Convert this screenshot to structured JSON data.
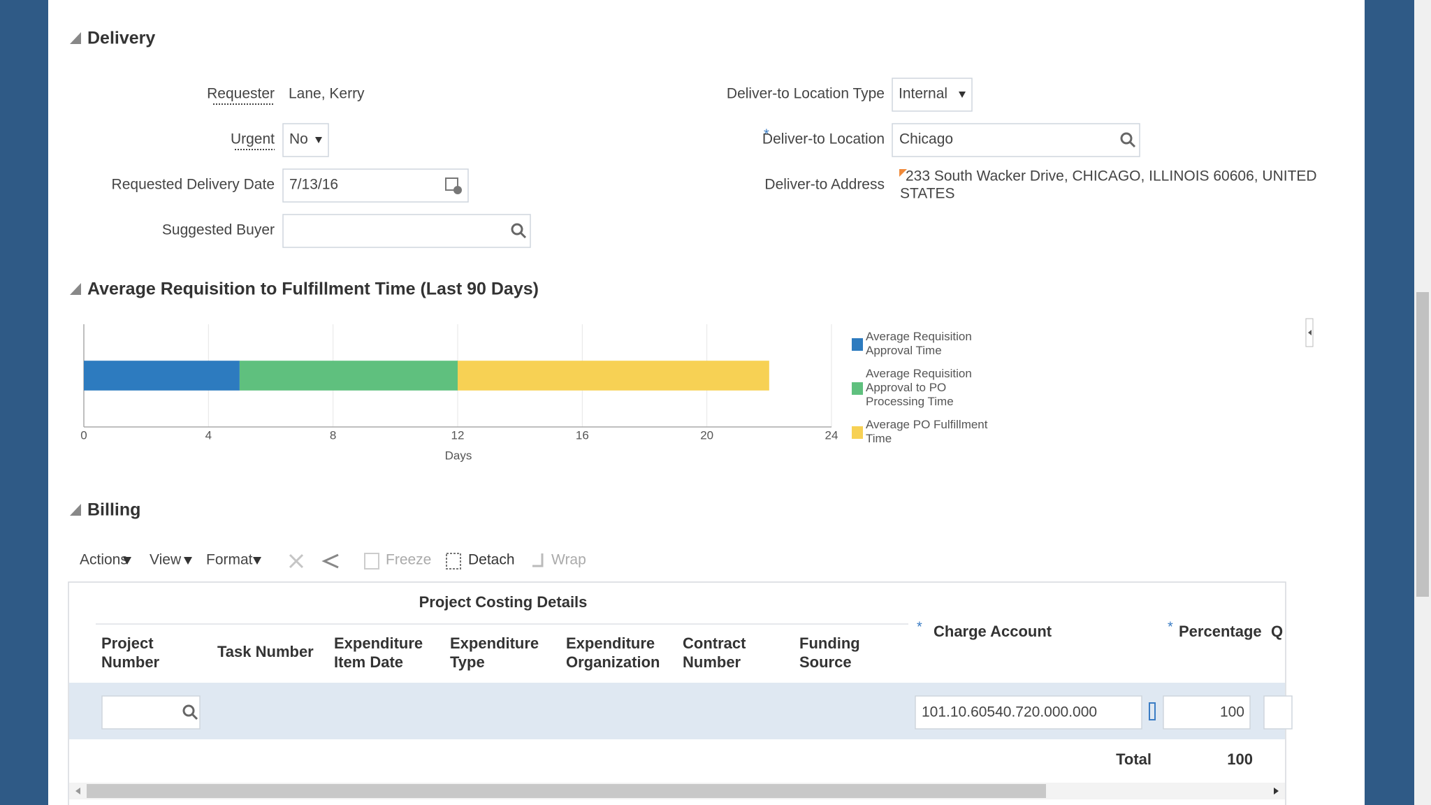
{
  "delivery": {
    "title": "Delivery",
    "required_mark": "*",
    "requester": {
      "label": "Requester",
      "value": "Lane, Kerry"
    },
    "urgent": {
      "label": "Urgent",
      "value": "No"
    },
    "requested_delivery_date": {
      "label": "Requested Delivery Date",
      "value": "7/13/16"
    },
    "suggested_buyer": {
      "label": "Suggested Buyer"
    },
    "deliver_to_location_type": {
      "label": "Deliver-to Location Type",
      "value": "Internal"
    },
    "deliver_to_location": {
      "label": "Deliver-to Location",
      "value": "Chicago"
    },
    "deliver_to_address": {
      "label": "Deliver-to Address",
      "lines": [
        "233 South Wacker Drive, CHICAGO, ILLINOIS 60606, UNITED",
        "STATES"
      ]
    }
  },
  "chart_data": {
    "type": "bar",
    "orientation": "horizontal",
    "stacked": true,
    "title": "Average Requisition to Fulfillment Time (Last 90 Days)",
    "x_label": "Days",
    "categories": [
      null
    ],
    "series": [
      {
        "name": "Average Requisition Approval Time",
        "color": "#2d7bbf",
        "values": [
          5
        ]
      },
      {
        "name": "Average Requisition Approval to PO Processing Time",
        "color": "#5fc07e",
        "values": [
          7
        ]
      },
      {
        "name": "Average PO Fulfillment Time",
        "color": "#f7d154",
        "values": [
          10
        ]
      }
    ],
    "xlim": [
      0,
      24
    ],
    "xticks": [
      0,
      4,
      8,
      12,
      16,
      20,
      24
    ],
    "grid": true,
    "legend": "right"
  },
  "billing": {
    "title": "Billing",
    "menus": [
      "Actions",
      "View",
      "Format"
    ],
    "freeze": "Freeze",
    "detach": "Detach",
    "wrap": "Wrap",
    "table": {
      "group_header": "Project Costing Details",
      "columns": [
        [
          "Project",
          "Number"
        ],
        [
          "Task Number"
        ],
        [
          "Expenditure",
          "Item Date"
        ],
        [
          "Expenditure",
          "Type"
        ],
        [
          "Expenditure",
          "Organization"
        ],
        [
          "Contract",
          "Number"
        ],
        [
          "Funding",
          "Source"
        ]
      ],
      "charge_account": "Charge Account",
      "percentage": "Percentage",
      "truncated_column": "Q",
      "rows": [
        {
          "charge_account": "101.10.60540.720.000.000",
          "percentage": 100
        }
      ],
      "total_label": "Total",
      "total": 100
    }
  }
}
